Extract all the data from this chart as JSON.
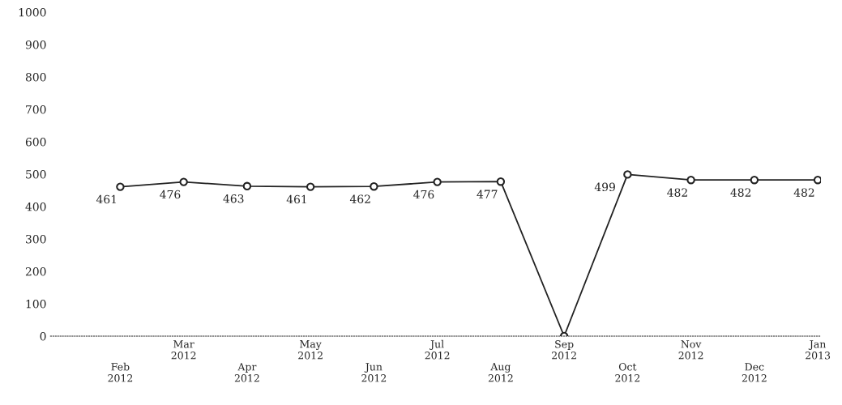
{
  "chart_data": {
    "type": "line",
    "categories": [
      "Feb 2012",
      "Mar 2012",
      "Apr 2012",
      "May 2012",
      "Jun 2012",
      "Jul 2012",
      "Aug 2012",
      "Sep 2012",
      "Oct 2012",
      "Nov 2012",
      "Dec 2012",
      "Jan 2013"
    ],
    "series": [
      {
        "color": "#222222",
        "values": [
          461,
          476,
          463,
          461,
          462,
          476,
          477,
          0,
          499,
          482,
          482,
          482
        ],
        "value_labels": [
          "461",
          "476",
          "463",
          "461",
          "462",
          "476",
          "477",
          null,
          "499",
          "482",
          "482",
          "482"
        ]
      }
    ],
    "ylim": [
      0,
      1000
    ],
    "yticks": [
      0,
      100,
      200,
      300,
      400,
      500,
      600,
      700,
      800,
      900,
      1000
    ],
    "marker": "circle",
    "line_style": "solid"
  }
}
